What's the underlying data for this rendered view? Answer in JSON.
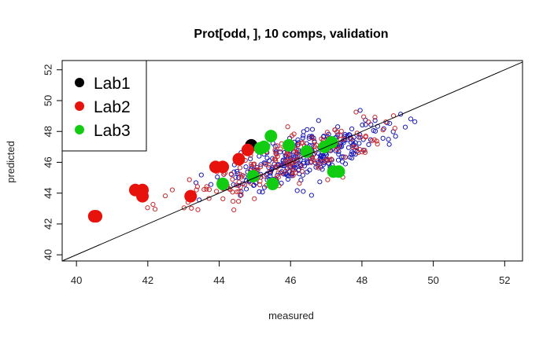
{
  "chart_data": {
    "type": "scatter",
    "title": "Prot[odd, ], 10 comps, validation",
    "xlabel": "measured",
    "ylabel": "predicted",
    "xlim": [
      39.6,
      52.5
    ],
    "ylim": [
      39.6,
      52.6
    ],
    "xticks": [
      40,
      42,
      44,
      46,
      48,
      50,
      52
    ],
    "yticks": [
      40,
      42,
      44,
      46,
      48,
      50,
      52
    ],
    "reference_line": "y = x",
    "legend_position": "top-left",
    "legend": [
      {
        "label": "Lab1",
        "color": "#000000"
      },
      {
        "label": "Lab2",
        "color": "#e8120c"
      },
      {
        "label": "Lab3",
        "color": "#11cc11"
      }
    ],
    "lab_points": [
      {
        "name": "Lab1",
        "color": "#000000",
        "points": [
          [
            44.9,
            47.1
          ]
        ]
      },
      {
        "name": "Lab2",
        "color": "#e8120c",
        "points": [
          [
            40.5,
            42.5
          ],
          [
            40.55,
            42.5
          ],
          [
            41.65,
            44.2
          ],
          [
            41.85,
            44.2
          ],
          [
            41.85,
            43.8
          ],
          [
            43.2,
            43.8
          ],
          [
            43.9,
            45.7
          ],
          [
            44.1,
            45.7
          ],
          [
            44.55,
            46.2
          ],
          [
            44.8,
            46.8
          ]
        ]
      },
      {
        "name": "Lab3",
        "color": "#11cc11",
        "points": [
          [
            44.1,
            44.6
          ],
          [
            44.95,
            45.1
          ],
          [
            45.15,
            46.9
          ],
          [
            45.25,
            47.0
          ],
          [
            45.45,
            47.7
          ],
          [
            45.5,
            44.6
          ],
          [
            45.95,
            47.1
          ],
          [
            46.45,
            46.7
          ],
          [
            46.95,
            47.0
          ],
          [
            47.15,
            47.3
          ],
          [
            47.2,
            45.4
          ],
          [
            47.35,
            45.4
          ]
        ]
      }
    ],
    "background_series": [
      {
        "name": "",
        "color": "#1a1ab4",
        "count": 330,
        "x_range": [
          42.5,
          50.3
        ]
      },
      {
        "name": "",
        "color": "#c8282d",
        "count": 200,
        "x_range": [
          40.2,
          51.0
        ]
      }
    ]
  }
}
